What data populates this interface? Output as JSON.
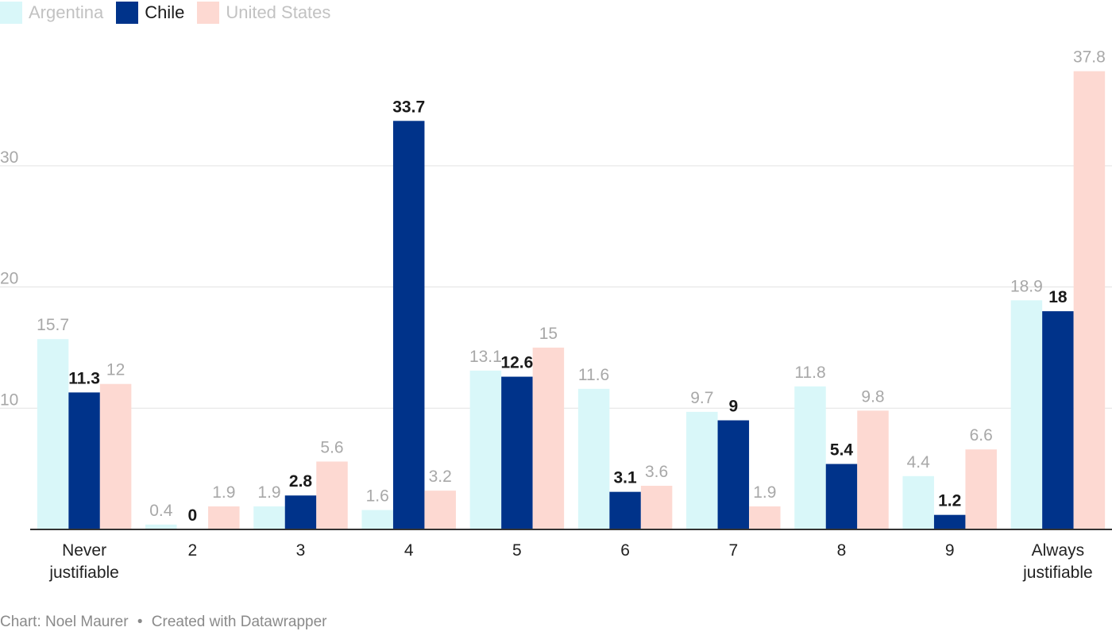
{
  "chart_data": {
    "type": "bar",
    "categories": [
      "Never\njustifiable",
      "2",
      "3",
      "4",
      "5",
      "6",
      "7",
      "8",
      "9",
      "Always\njustifiable"
    ],
    "series": [
      {
        "name": "Argentina",
        "color": "#d9f7f9",
        "highlight": false,
        "values": [
          15.7,
          0.4,
          1.9,
          1.6,
          13.1,
          11.6,
          9.7,
          11.8,
          4.4,
          18.9
        ]
      },
      {
        "name": "Chile",
        "color": "#00338a",
        "highlight": true,
        "values": [
          11.3,
          0,
          2.8,
          33.7,
          12.6,
          3.1,
          9,
          5.4,
          1.2,
          18
        ]
      },
      {
        "name": "United States",
        "color": "#fdd9d2",
        "highlight": false,
        "values": [
          12,
          1.9,
          5.6,
          3.2,
          15,
          3.6,
          1.9,
          9.8,
          6.6,
          37.8
        ]
      }
    ],
    "yticks": [
      10,
      20,
      30
    ],
    "ylim": [
      0,
      38.5
    ],
    "grid": true,
    "legend_position": "top-left",
    "label_colors": {
      "muted": "#a8a8a8",
      "highlight": "#1a1a1a"
    }
  },
  "footer": {
    "credit": "Chart: Noel Maurer",
    "separator": "•",
    "tool": "Created with Datawrapper"
  }
}
